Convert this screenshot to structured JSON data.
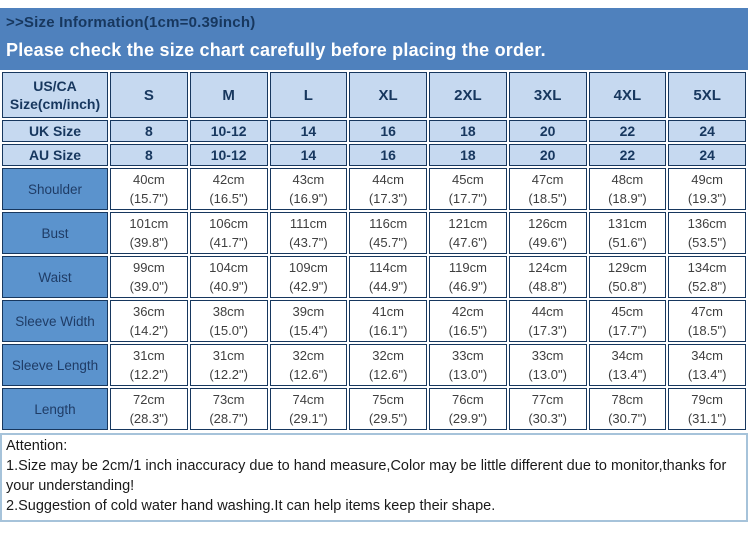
{
  "header": {
    "title": ">>Size Information(1cm=0.39inch)",
    "banner": "Please check the size chart carefully before placing the order."
  },
  "table": {
    "corner": "US/CA\nSize(cm/inch)",
    "sizes": [
      "S",
      "M",
      "L",
      "XL",
      "2XL",
      "3XL",
      "4XL",
      "5XL"
    ],
    "uk": {
      "label": "UK Size",
      "values": [
        "8",
        "10-12",
        "14",
        "16",
        "18",
        "20",
        "22",
        "24"
      ]
    },
    "au": {
      "label": "AU Size",
      "values": [
        "8",
        "10-12",
        "14",
        "16",
        "18",
        "20",
        "22",
        "24"
      ]
    },
    "rows": [
      {
        "label": "Shoulder",
        "cells": [
          "40cm\n(15.7\")",
          "42cm\n(16.5\")",
          "43cm\n(16.9\")",
          "44cm\n(17.3\")",
          "45cm\n(17.7\")",
          "47cm\n(18.5\")",
          "48cm\n(18.9\")",
          "49cm\n(19.3\")"
        ]
      },
      {
        "label": "Bust",
        "cells": [
          "101cm\n(39.8\")",
          "106cm\n(41.7\")",
          "111cm\n(43.7\")",
          "116cm\n(45.7\")",
          "121cm\n(47.6\")",
          "126cm\n(49.6\")",
          "131cm\n(51.6\")",
          "136cm\n(53.5\")"
        ]
      },
      {
        "label": "Waist",
        "cells": [
          "99cm\n(39.0\")",
          "104cm\n(40.9\")",
          "109cm\n(42.9\")",
          "114cm\n(44.9\")",
          "119cm\n(46.9\")",
          "124cm\n(48.8\")",
          "129cm\n(50.8\")",
          "134cm\n(52.8\")"
        ]
      },
      {
        "label": "Sleeve Width",
        "cells": [
          "36cm\n(14.2\")",
          "38cm\n(15.0\")",
          "39cm\n(15.4\")",
          "41cm\n(16.1\")",
          "42cm\n(16.5\")",
          "44cm\n(17.3\")",
          "45cm\n(17.7\")",
          "47cm\n(18.5\")"
        ]
      },
      {
        "label": "Sleeve Length",
        "cells": [
          "31cm\n(12.2\")",
          "31cm\n(12.2\")",
          "32cm\n(12.6\")",
          "32cm\n(12.6\")",
          "33cm\n(13.0\")",
          "33cm\n(13.0\")",
          "34cm\n(13.4\")",
          "34cm\n(13.4\")"
        ]
      },
      {
        "label": "Length",
        "cells": [
          "72cm\n(28.3\")",
          "73cm\n(28.7\")",
          "74cm\n(29.1\")",
          "75cm\n(29.5\")",
          "76cm\n(29.9\")",
          "77cm\n(30.3\")",
          "78cm\n(30.7\")",
          "79cm\n(31.1\")"
        ]
      }
    ]
  },
  "attention": {
    "heading": "Attention:",
    "line1": "1.Size may be 2cm/1 inch inaccuracy due to hand measure,Color may be little different due to monitor,thanks for your understanding!",
    "line2": "2.Suggestion of cold water hand washing.It can help items keep their shape."
  },
  "colors": {
    "banner_blue": "#4f81bd",
    "header_cell_blue": "#c6d9f0",
    "label_cell_blue": "#5b93cd",
    "border_navy": "#17375e",
    "attention_border": "#a6c3da"
  }
}
